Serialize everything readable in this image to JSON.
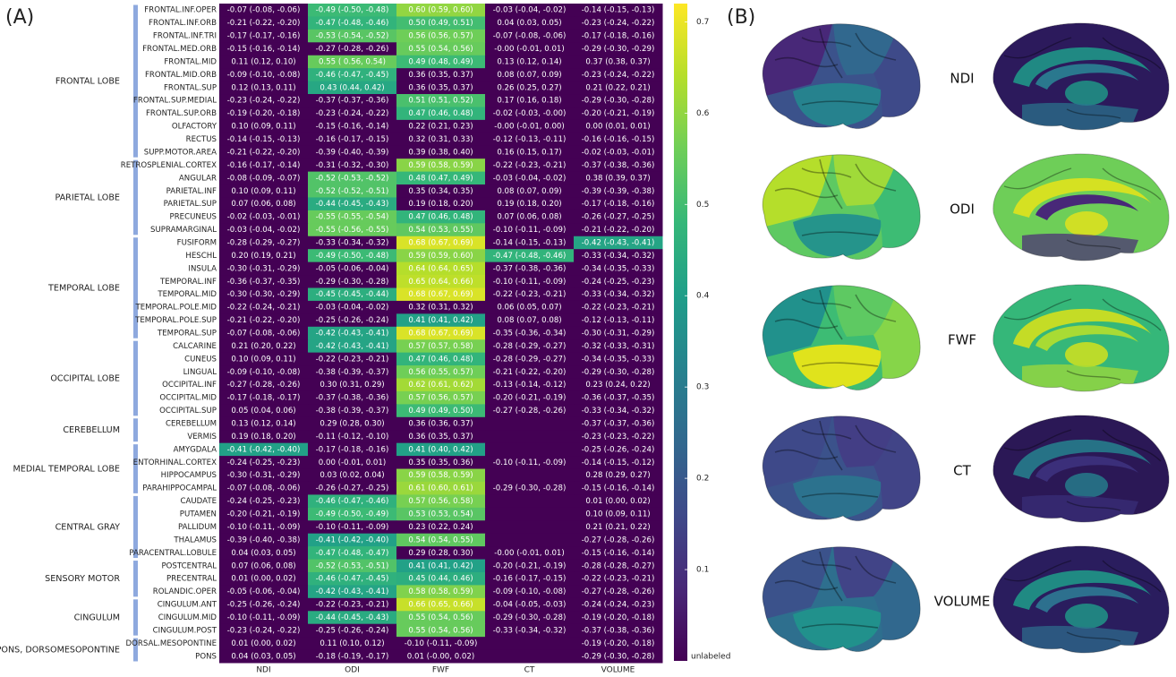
{
  "panel_a": {
    "label": "(A)",
    "columns": [
      "NDI",
      "ODI",
      "FWF",
      "CT",
      "VOLUME"
    ],
    "groups": [
      {
        "name": "FRONTAL LOBE",
        "rows": [
          {
            "region": "FRONTAL.INF.OPER",
            "cells": [
              "-0.07 (-0.08, -0.06)",
              "-0.49 (-0.50, -0.48)",
              "0.60 (0.59, 0.60)",
              "-0.03 (-0.04, -0.02)",
              "-0.14 (-0.15, -0.13)"
            ]
          },
          {
            "region": "FRONTAL.INF.ORB",
            "cells": [
              "-0.21 (-0.22, -0.20)",
              "-0.47 (-0.48, -0.46)",
              "0.50 (0.49, 0.51)",
              "0.04 (0.03, 0.05)",
              "-0.23 (-0.24, -0.22)"
            ]
          },
          {
            "region": "FRONTAL.INF.TRI",
            "cells": [
              "-0.17 (-0.17, -0.16)",
              "-0.53 (-0.54, -0.52)",
              "0.56 (0.56, 0.57)",
              "-0.07 (-0.08, -0.06)",
              "-0.17 (-0.18, -0.16)"
            ]
          },
          {
            "region": "FRONTAL.MED.ORB",
            "cells": [
              "-0.15 (-0.16, -0.14)",
              "-0.27 (-0.28, -0.26)",
              "0.55 (0.54, 0.56)",
              "-0.00 (-0.01, 0.01)",
              "-0.29 (-0.30, -0.29)"
            ]
          },
          {
            "region": "FRONTAL.MID",
            "cells": [
              "0.11 (0.12, 0.10)",
              "0.55 ( 0.56, 0.54)",
              "0.49 (0.48, 0.49)",
              "0.13 (0.12, 0.14)",
              "0.37 (0.38, 0.37)"
            ]
          },
          {
            "region": "FRONTAL.MID.ORB",
            "cells": [
              "-0.09 (-0.10, -0.08)",
              "-0.46 (-0.47, -0.45)",
              "0.36 (0.35, 0.37)",
              "0.08 (0.07, 0.09)",
              "-0.23 (-0.24, -0.22)"
            ]
          },
          {
            "region": "FRONTAL.SUP",
            "cells": [
              "0.12 (0.13, 0.11)",
              "0.43 (0.44, 0.42)",
              "0.36 (0.35, 0.37)",
              "0.26 (0.25, 0.27)",
              "0.21 (0.22, 0.21)"
            ]
          },
          {
            "region": "FRONTAL.SUP.MEDIAL",
            "cells": [
              "-0.23 (-0.24, -0.22)",
              "-0.37 (-0.37, -0.36)",
              "0.51 (0.51, 0.52)",
              "0.17 (0.16, 0.18)",
              "-0.29 (-0.30, -0.28)"
            ]
          },
          {
            "region": "FRONTAL.SUP.ORB",
            "cells": [
              "-0.19 (-0.20, -0.18)",
              "-0.23 (-0.24, -0.22)",
              "0.47 (0.46, 0.48)",
              "-0.02 (-0.03, -0.00)",
              "-0.20 (-0.21, -0.19)"
            ]
          },
          {
            "region": "OLFACTORY",
            "cells": [
              "0.10 (0.09, 0.11)",
              "-0.15 (-0.16, -0.14)",
              "0.22 (0.21, 0.23)",
              "-0.00 (-0.01, 0.00)",
              "0.00 (0.01, 0.01)"
            ]
          },
          {
            "region": "RECTUS",
            "cells": [
              "-0.14 (-0.15, -0.13)",
              "-0.16 (-0.17, -0.15)",
              "0.32 (0.31, 0.33)",
              "-0.12 (-0.13, -0.11)",
              "-0.16 (-0.16, -0.15)"
            ]
          },
          {
            "region": "SUPP.MOTOR.AREA",
            "cells": [
              "-0.21 (-0.22, -0.20)",
              "-0.39 (-0.40, -0.39)",
              "0.39 (0.38, 0.40)",
              "0.16 (0.15, 0.17)",
              "-0.02 (-0.03, -0.01)"
            ]
          }
        ]
      },
      {
        "name": "PARIETAL LOBE",
        "rows": [
          {
            "region": "RETROSPLENIAL.CORTEX",
            "cells": [
              "-0.16 (-0.17, -0.14)",
              "-0.31 (-0.32, -0.30)",
              "0.59 (0.58, 0.59)",
              "-0.22 (-0.23, -0.21)",
              "-0.37 (-0.38, -0.36)"
            ]
          },
          {
            "region": "ANGULAR",
            "cells": [
              "-0.08 (-0.09, -0.07)",
              "-0.52 (-0.53, -0.52)",
              "0.48 (0.47, 0.49)",
              "-0.03 (-0.04, -0.02)",
              "0.38 (0.39, 0.37)"
            ]
          },
          {
            "region": "PARIETAL.INF",
            "cells": [
              "0.10 (0.09, 0.11)",
              "-0.52 (-0.52, -0.51)",
              "0.35 (0.34, 0.35)",
              "0.08 (0.07, 0.09)",
              "-0.39 (-0.39, -0.38)"
            ]
          },
          {
            "region": "PARIETAL.SUP",
            "cells": [
              "0.07 (0.06, 0.08)",
              "-0.44 (-0.45, -0.43)",
              "0.19 (0.18, 0.20)",
              "0.19 (0.18, 0.20)",
              "-0.17 (-0.18, -0.16)"
            ]
          },
          {
            "region": "PRECUNEUS",
            "cells": [
              "-0.02 (-0.03, -0.01)",
              "-0.55 (-0.55, -0.54)",
              "0.47 (0.46, 0.48)",
              "0.07 (0.06, 0.08)",
              "-0.26 (-0.27, -0.25)"
            ]
          },
          {
            "region": "SUPRAMARGINAL",
            "cells": [
              "-0.03 (-0.04, -0.02)",
              "-0.55 (-0.56, -0.55)",
              "0.54 (0.53, 0.55)",
              "-0.10 (-0.11, -0.09)",
              "-0.21 (-0.22, -0.20)"
            ]
          }
        ]
      },
      {
        "name": "TEMPORAL LOBE",
        "rows": [
          {
            "region": "FUSIFORM",
            "cells": [
              "-0.28 (-0.29, -0.27)",
              "-0.33 (-0.34, -0.32)",
              "0.68 (0.67, 0.69)",
              "-0.14 (-0.15, -0.13)",
              "-0.42 (-0.43, -0.41)"
            ]
          },
          {
            "region": "HESCHL",
            "cells": [
              "0.20 (0.19, 0.21)",
              "-0.49 (-0.50, -0.48)",
              "0.59 (0.59, 0.60)",
              "-0.47 (-0.48, -0.46)",
              "-0.33 (-0.34, -0.32)"
            ]
          },
          {
            "region": "INSULA",
            "cells": [
              "-0.30 (-0.31, -0.29)",
              "-0.05 (-0.06, -0.04)",
              "0.64 (0.64, 0.65)",
              "-0.37 (-0.38, -0.36)",
              "-0.34 (-0.35, -0.33)"
            ]
          },
          {
            "region": "TEMPORAL.INF",
            "cells": [
              "-0.36 (-0.37, -0.35)",
              "-0.29 (-0.30, -0.28)",
              "0.65 (0.64, 0.66)",
              "-0.10 (-0.11, -0.09)",
              "-0.24 (-0.25, -0.23)"
            ]
          },
          {
            "region": "TEMPORAL.MID",
            "cells": [
              "-0.30 (-0.30, -0.29)",
              "-0.45 (-0.45, -0.44)",
              "0.68 (0.67, 0.69)",
              "-0.22 (-0.23, -0.21)",
              "-0.33 (-0.34, -0.32)"
            ]
          },
          {
            "region": "TEMPORAL.POLE.MID",
            "cells": [
              "-0.22 (-0.24, -0.21)",
              "-0.03 (-0.04, -0.02)",
              "0.32 (0.31, 0.32)",
              "0.06 (0.05, 0.07)",
              "-0.22 (-0.23, -0.21)"
            ]
          },
          {
            "region": "TEMPORAL.POLE.SUP",
            "cells": [
              "-0.21 (-0.22, -0.20)",
              "-0.25 (-0.26, -0.24)",
              "0.41 (0.41, 0.42)",
              "0.08 (0.07, 0.08)",
              "-0.12 (-0.13, -0.11)"
            ]
          },
          {
            "region": "TEMPORAL.SUP",
            "cells": [
              "-0.07 (-0.08, -0.06)",
              "-0.42 (-0.43, -0.41)",
              "0.68 (0.67, 0.69)",
              "-0.35 (-0.36, -0.34)",
              "-0.30 (-0.31, -0.29)"
            ]
          }
        ]
      },
      {
        "name": "OCCIPITAL LOBE",
        "rows": [
          {
            "region": "CALCARINE",
            "cells": [
              "0.21 (0.20, 0.22)",
              "-0.42 (-0.43, -0.41)",
              "0.57 (0.57, 0.58)",
              "-0.28 (-0.29, -0.27)",
              "-0.32 (-0.33, -0.31)"
            ]
          },
          {
            "region": "CUNEUS",
            "cells": [
              "0.10 (0.09, 0.11)",
              "-0.22 (-0.23, -0.21)",
              "0.47 (0.46, 0.48)",
              "-0.28 (-0.29, -0.27)",
              "-0.34 (-0.35, -0.33)"
            ]
          },
          {
            "region": "LINGUAL",
            "cells": [
              "-0.09 (-0.10, -0.08)",
              "-0.38 (-0.39, -0.37)",
              "0.56 (0.55, 0.57)",
              "-0.21 (-0.22, -0.20)",
              "-0.29 (-0.30, -0.28)"
            ]
          },
          {
            "region": "OCCIPITAL.INF",
            "cells": [
              "-0.27 (-0.28, -0.26)",
              "0.30 (0.31, 0.29)",
              "0.62 (0.61, 0.62)",
              "-0.13 (-0.14, -0.12)",
              "0.23 (0.24, 0.22)"
            ]
          },
          {
            "region": "OCCIPITAL.MID",
            "cells": [
              "-0.17 (-0.18, -0.17)",
              "-0.37 (-0.38, -0.36)",
              "0.57 (0.56, 0.57)",
              "-0.20 (-0.21, -0.19)",
              "-0.36 (-0.37, -0.35)"
            ]
          },
          {
            "region": "OCCIPITAL.SUP",
            "cells": [
              "0.05 (0.04, 0.06)",
              "-0.38 (-0.39, -0.37)",
              "0.49 (0.49, 0.50)",
              "-0.27 (-0.28, -0.26)",
              "-0.33 (-0.34, -0.32)"
            ]
          }
        ]
      },
      {
        "name": "CEREBELLUM",
        "rows": [
          {
            "region": "CEREBELLUM",
            "cells": [
              "0.13 (0.12, 0.14)",
              "0.29 (0.28, 0.30)",
              "0.36 (0.36, 0.37)",
              null,
              "-0.37 (-0.37, -0.36)"
            ]
          },
          {
            "region": "VERMIS",
            "cells": [
              "0.19 (0.18, 0.20)",
              "-0.11 (-0.12, -0.10)",
              "0.36 (0.35, 0.37)",
              null,
              "-0.23 (-0.23, -0.22)"
            ]
          }
        ]
      },
      {
        "name": "MEDIAL TEMPORAL LOBE",
        "rows": [
          {
            "region": "AMYGDALA",
            "cells": [
              "-0.41 (-0.42, -0.40)",
              "-0.17 (-0.18, -0.16)",
              "0.41 (0.40, 0.42)",
              null,
              "-0.25 (-0.26, -0.24)"
            ]
          },
          {
            "region": "ENTORHINAL.CORTEX",
            "cells": [
              "-0.24 (-0.25, -0.23)",
              "0.00 (-0.01, 0.01)",
              "0.35 (0.35, 0.36)",
              "-0.10 (-0.11, -0.09)",
              "-0.14 (-0.15, -0.12)"
            ]
          },
          {
            "region": "HIPPOCAMPUS",
            "cells": [
              "-0.30 (-0.31, -0.29)",
              "0.03 (0.02, 0.04)",
              "0.59 (0.58, 0.59)",
              null,
              "0.28 (0.29, 0.27)"
            ]
          },
          {
            "region": "PARAHIPPOCAMPAL",
            "cells": [
              "-0.07 (-0.08, -0.06)",
              "-0.26 (-0.27, -0.25)",
              "0.61 (0.60, 0.61)",
              "-0.29 (-0.30, -0.28)",
              "-0.15 (-0.16, -0.14)"
            ]
          }
        ]
      },
      {
        "name": "CENTRAL GRAY",
        "rows": [
          {
            "region": "CAUDATE",
            "cells": [
              "-0.24 (-0.25, -0.23)",
              "-0.46 (-0.47, -0.46)",
              "0.57 (0.56, 0.58)",
              null,
              "0.01 (0.00, 0.02)"
            ]
          },
          {
            "region": "PUTAMEN",
            "cells": [
              "-0.20 (-0.21, -0.19)",
              "-0.49 (-0.50, -0.49)",
              "0.53 (0.53, 0.54)",
              null,
              "0.10 (0.09, 0.11)"
            ]
          },
          {
            "region": "PALLIDUM",
            "cells": [
              "-0.10 (-0.11, -0.09)",
              "-0.10 (-0.11, -0.09)",
              "0.23 (0.22, 0.24)",
              null,
              "0.21 (0.21, 0.22)"
            ]
          },
          {
            "region": "THALAMUS",
            "cells": [
              "-0.39 (-0.40, -0.38)",
              "-0.41 (-0.42, -0.40)",
              "0.54 (0.54, 0.55)",
              null,
              "-0.27 (-0.28, -0.26)"
            ]
          },
          {
            "region": "PARACENTRAL.LOBULE",
            "cells": [
              "0.04 (0.03, 0.05)",
              "-0.47 (-0.48, -0.47)",
              "0.29 (0.28, 0.30)",
              "-0.00 (-0.01, 0.01)",
              "-0.15 (-0.16, -0.14)"
            ]
          }
        ]
      },
      {
        "name": "SENSORY MOTOR",
        "rows": [
          {
            "region": "POSTCENTRAL",
            "cells": [
              "0.07 (0.06, 0.08)",
              "-0.52 (-0.53, -0.51)",
              "0.41 (0.41, 0.42)",
              "-0.20 (-0.21, -0.19)",
              "-0.28 (-0.28, -0.27)"
            ]
          },
          {
            "region": "PRECENTRAL",
            "cells": [
              "0.01 (0.00, 0.02)",
              "-0.46 (-0.47, -0.45)",
              "0.45 (0.44, 0.46)",
              "-0.16 (-0.17, -0.15)",
              "-0.22 (-0.23, -0.21)"
            ]
          },
          {
            "region": "ROLANDIC.OPER",
            "cells": [
              "-0.05 (-0.06, -0.04)",
              "-0.42 (-0.43, -0.41)",
              "0.58 (0.58, 0.59)",
              "-0.09 (-0.10, -0.08)",
              "-0.27 (-0.28, -0.26)"
            ]
          }
        ]
      },
      {
        "name": "CINGULUM",
        "rows": [
          {
            "region": "CINGULUM.ANT",
            "cells": [
              "-0.25 (-0.26, -0.24)",
              "-0.22 (-0.23, -0.21)",
              "0.66 (0.65, 0.66)",
              "-0.04 (-0.05, -0.03)",
              "-0.24 (-0.24, -0.23)"
            ]
          },
          {
            "region": "CINGULUM.MID",
            "cells": [
              "-0.10 (-0.11, -0.09)",
              "-0.44 (-0.45, -0.43)",
              "0.55 (0.54, 0.56)",
              "-0.29 (-0.30, -0.28)",
              "-0.19 (-0.20, -0.18)"
            ]
          },
          {
            "region": "CINGULUM.POST",
            "cells": [
              "-0.23 (-0.24, -0.22)",
              "-0.25 (-0.26, -0.24)",
              "0.55 (0.54, 0.56)",
              "-0.33 (-0.34, -0.32)",
              "-0.37 (-0.38, -0.36)"
            ]
          }
        ]
      },
      {
        "name": "PONS, DORSOMESOPONTINE",
        "rows": [
          {
            "region": "DORSAL.MESOPONTINE",
            "cells": [
              "0.01 (0.00, 0.02)",
              "0.11 (0.10, 0.12)",
              "-0.10 (-0.11, -0.09)",
              null,
              "-0.19 (-0.20, -0.18)"
            ]
          },
          {
            "region": "PONS",
            "cells": [
              "0.04 (0.03, 0.05)",
              "-0.18 (-0.19, -0.17)",
              "0.01 (-0.00, 0.02)",
              null,
              "-0.29 (-0.30, -0.28)"
            ]
          }
        ]
      }
    ],
    "colorbar": {
      "lim": [
        0,
        0.72
      ],
      "ticks": [
        0.1,
        0.2,
        0.3,
        0.4,
        0.5,
        0.6,
        0.7
      ],
      "unlabeled": "unlabeled",
      "highlight_min": 0.4
    }
  },
  "panel_b": {
    "label": "(B)",
    "metrics": [
      "NDI",
      "ODI",
      "FWF",
      "CT",
      "VOLUME"
    ]
  }
}
